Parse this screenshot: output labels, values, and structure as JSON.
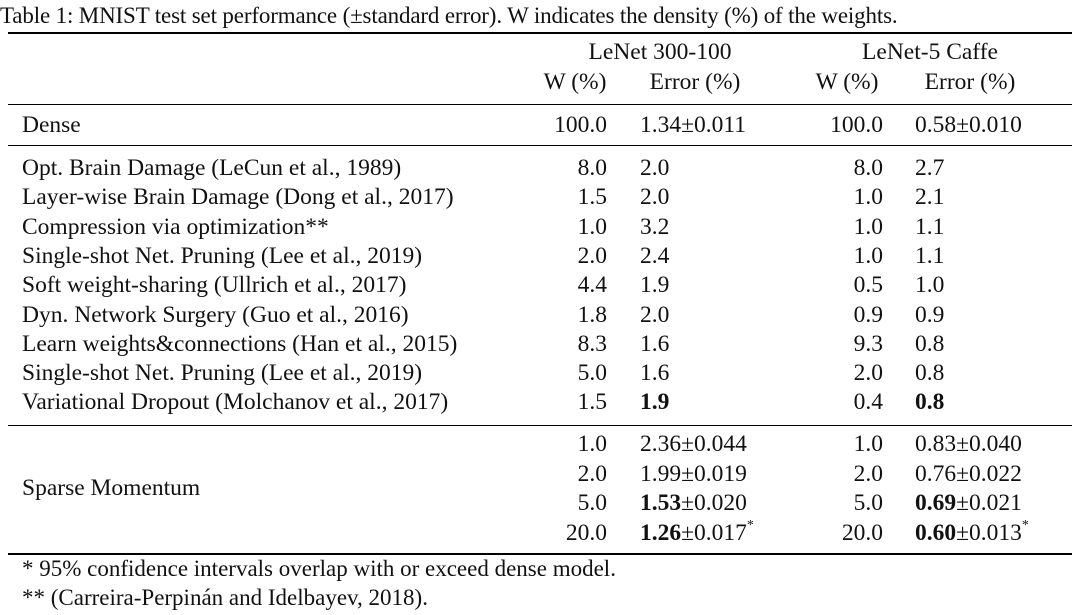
{
  "caption": "Table 1: MNIST test set performance (±standard error). W indicates the density (%) of the weights.",
  "header": {
    "group1": "LeNet 300-100",
    "group2": "LeNet-5 Caffe",
    "w_label": "W (%)",
    "err_label": "Error (%)"
  },
  "dense": {
    "method": "Dense",
    "w1": "100.0",
    "e1": "1.34±0.011",
    "w2": "100.0",
    "e2": "0.58±0.010"
  },
  "baselines": [
    {
      "method": "Opt. Brain Damage (LeCun et al., 1989)",
      "w1": "8.0",
      "e1": "2.0",
      "w2": "8.0",
      "e2": "2.7"
    },
    {
      "method": "Layer-wise Brain Damage (Dong et al., 2017)",
      "w1": "1.5",
      "e1": "2.0",
      "w2": "1.0",
      "e2": "2.1"
    },
    {
      "method": "Compression via optimization**",
      "w1": "1.0",
      "e1": "3.2",
      "w2": "1.0",
      "e2": "1.1"
    },
    {
      "method": "Single-shot Net. Pruning (Lee et al., 2019)",
      "w1": "2.0",
      "e1": "2.4",
      "w2": "1.0",
      "e2": "1.1"
    },
    {
      "method": "Soft weight-sharing (Ullrich et al., 2017)",
      "w1": "4.4",
      "e1": "1.9",
      "w2": "0.5",
      "e2": "1.0"
    },
    {
      "method": "Dyn. Network Surgery (Guo et al., 2016)",
      "w1": "1.8",
      "e1": "2.0",
      "w2": "0.9",
      "e2": "0.9"
    },
    {
      "method": "Learn weights&connections (Han et al., 2015)",
      "w1": "8.3",
      "e1": "1.6",
      "w2": "9.3",
      "e2": "0.8"
    },
    {
      "method": "Single-shot Net. Pruning (Lee et al., 2019)",
      "w1": "5.0",
      "e1": "1.6",
      "w2": "2.0",
      "e2": "0.8"
    },
    {
      "method": "Variational Dropout (Molchanov et al., 2017)",
      "w1": "1.5",
      "e1": "1.9",
      "w2": "0.4",
      "e2": "0.8"
    }
  ],
  "sparse": {
    "method": "Sparse Momentum",
    "rows": [
      {
        "w1": "1.0",
        "e1_main": "2.36",
        "e1_err": "±0.044",
        "w2": "1.0",
        "e2_main": "0.83",
        "e2_err": "±0.040",
        "mark1": "",
        "mark2": ""
      },
      {
        "w1": "2.0",
        "e1_main": "1.99",
        "e1_err": "±0.019",
        "w2": "2.0",
        "e2_main": "0.76",
        "e2_err": "±0.022",
        "mark1": "",
        "mark2": ""
      },
      {
        "w1": "5.0",
        "e1_main": "1.53",
        "e1_err": "±0.020",
        "w2": "5.0",
        "e2_main": "0.69",
        "e2_err": "±0.021",
        "mark1": "",
        "mark2": ""
      },
      {
        "w1": "20.0",
        "e1_main": "1.26",
        "e1_err": "±0.017",
        "w2": "20.0",
        "e2_main": "0.60",
        "e2_err": "±0.013",
        "mark1": "*",
        "mark2": "*"
      }
    ]
  },
  "footnotes": [
    "* 95% confidence intervals overlap with or exceed dense model.",
    "** (Carreira-Perpinán and Idelbayev, 2018)."
  ]
}
